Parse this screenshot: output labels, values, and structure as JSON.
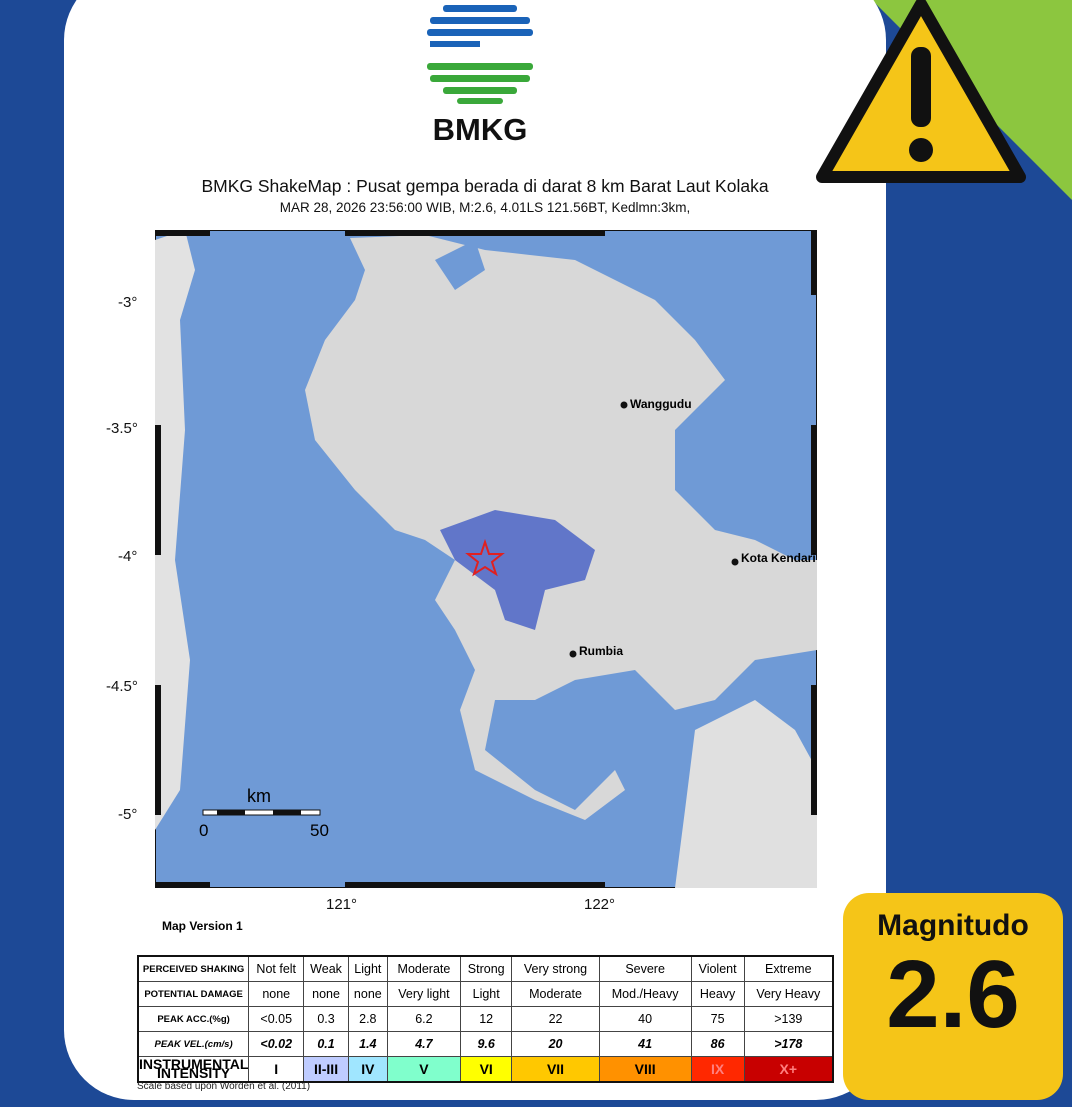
{
  "logo": {
    "text": "BMKG"
  },
  "header": {
    "title": "BMKG ShakeMap : Pusat gempa berada di darat 8 km Barat Laut Kolaka",
    "subtitle": "MAR 28, 2026 23:56:00 WIB, M:2.6, 4.01LS 121.56BT, Kedlmn:3km,"
  },
  "map": {
    "lat_labels": [
      "-3°",
      "-3.5°",
      "-4°",
      "-4.5°",
      "-5°"
    ],
    "lon_labels": [
      "121°",
      "122°"
    ],
    "places": [
      "Wanggudu",
      "Kota Kendari",
      "Rumbia"
    ],
    "scale_unit": "km",
    "scale_ticks": [
      "0",
      "50"
    ],
    "version": "Map Version 1",
    "epicenter": {
      "lat": -4.01,
      "lon": 121.56
    },
    "ocean_color": "#6f9ad6"
  },
  "legend": {
    "rows": [
      {
        "label": "PERCEIVED SHAKING",
        "cells": [
          "Not felt",
          "Weak",
          "Light",
          "Moderate",
          "Strong",
          "Very strong",
          "Severe",
          "Violent",
          "Extreme"
        ]
      },
      {
        "label": "POTENTIAL DAMAGE",
        "cells": [
          "none",
          "none",
          "none",
          "Very light",
          "Light",
          "Moderate",
          "Mod./Heavy",
          "Heavy",
          "Very Heavy"
        ]
      },
      {
        "label": "PEAK ACC.(%g)",
        "cells": [
          "<0.05",
          "0.3",
          "2.8",
          "6.2",
          "12",
          "22",
          "40",
          "75",
          ">139"
        ]
      },
      {
        "label": "PEAK VEL.(cm/s)",
        "cells": [
          "<0.02",
          "0.1",
          "1.4",
          "4.7",
          "9.6",
          "20",
          "41",
          "86",
          ">178"
        ]
      },
      {
        "label": "INSTRUMENTAL INTENSITY",
        "cells": [
          "I",
          "II-III",
          "IV",
          "V",
          "VI",
          "VII",
          "VIII",
          "IX",
          "X+"
        ]
      }
    ],
    "intensity_colors": [
      "#ffffff",
      "#bfccff",
      "#a0e6ff",
      "#80ffcc",
      "#ffff00",
      "#ffc800",
      "#ff9100",
      "#ff2800",
      "#c80000"
    ],
    "note": "Scale based upon Worden et al. (2011)"
  },
  "warning_icon": "warning-triangle-icon",
  "magnitude": {
    "label": "Magnitudo",
    "value": "2.6"
  }
}
